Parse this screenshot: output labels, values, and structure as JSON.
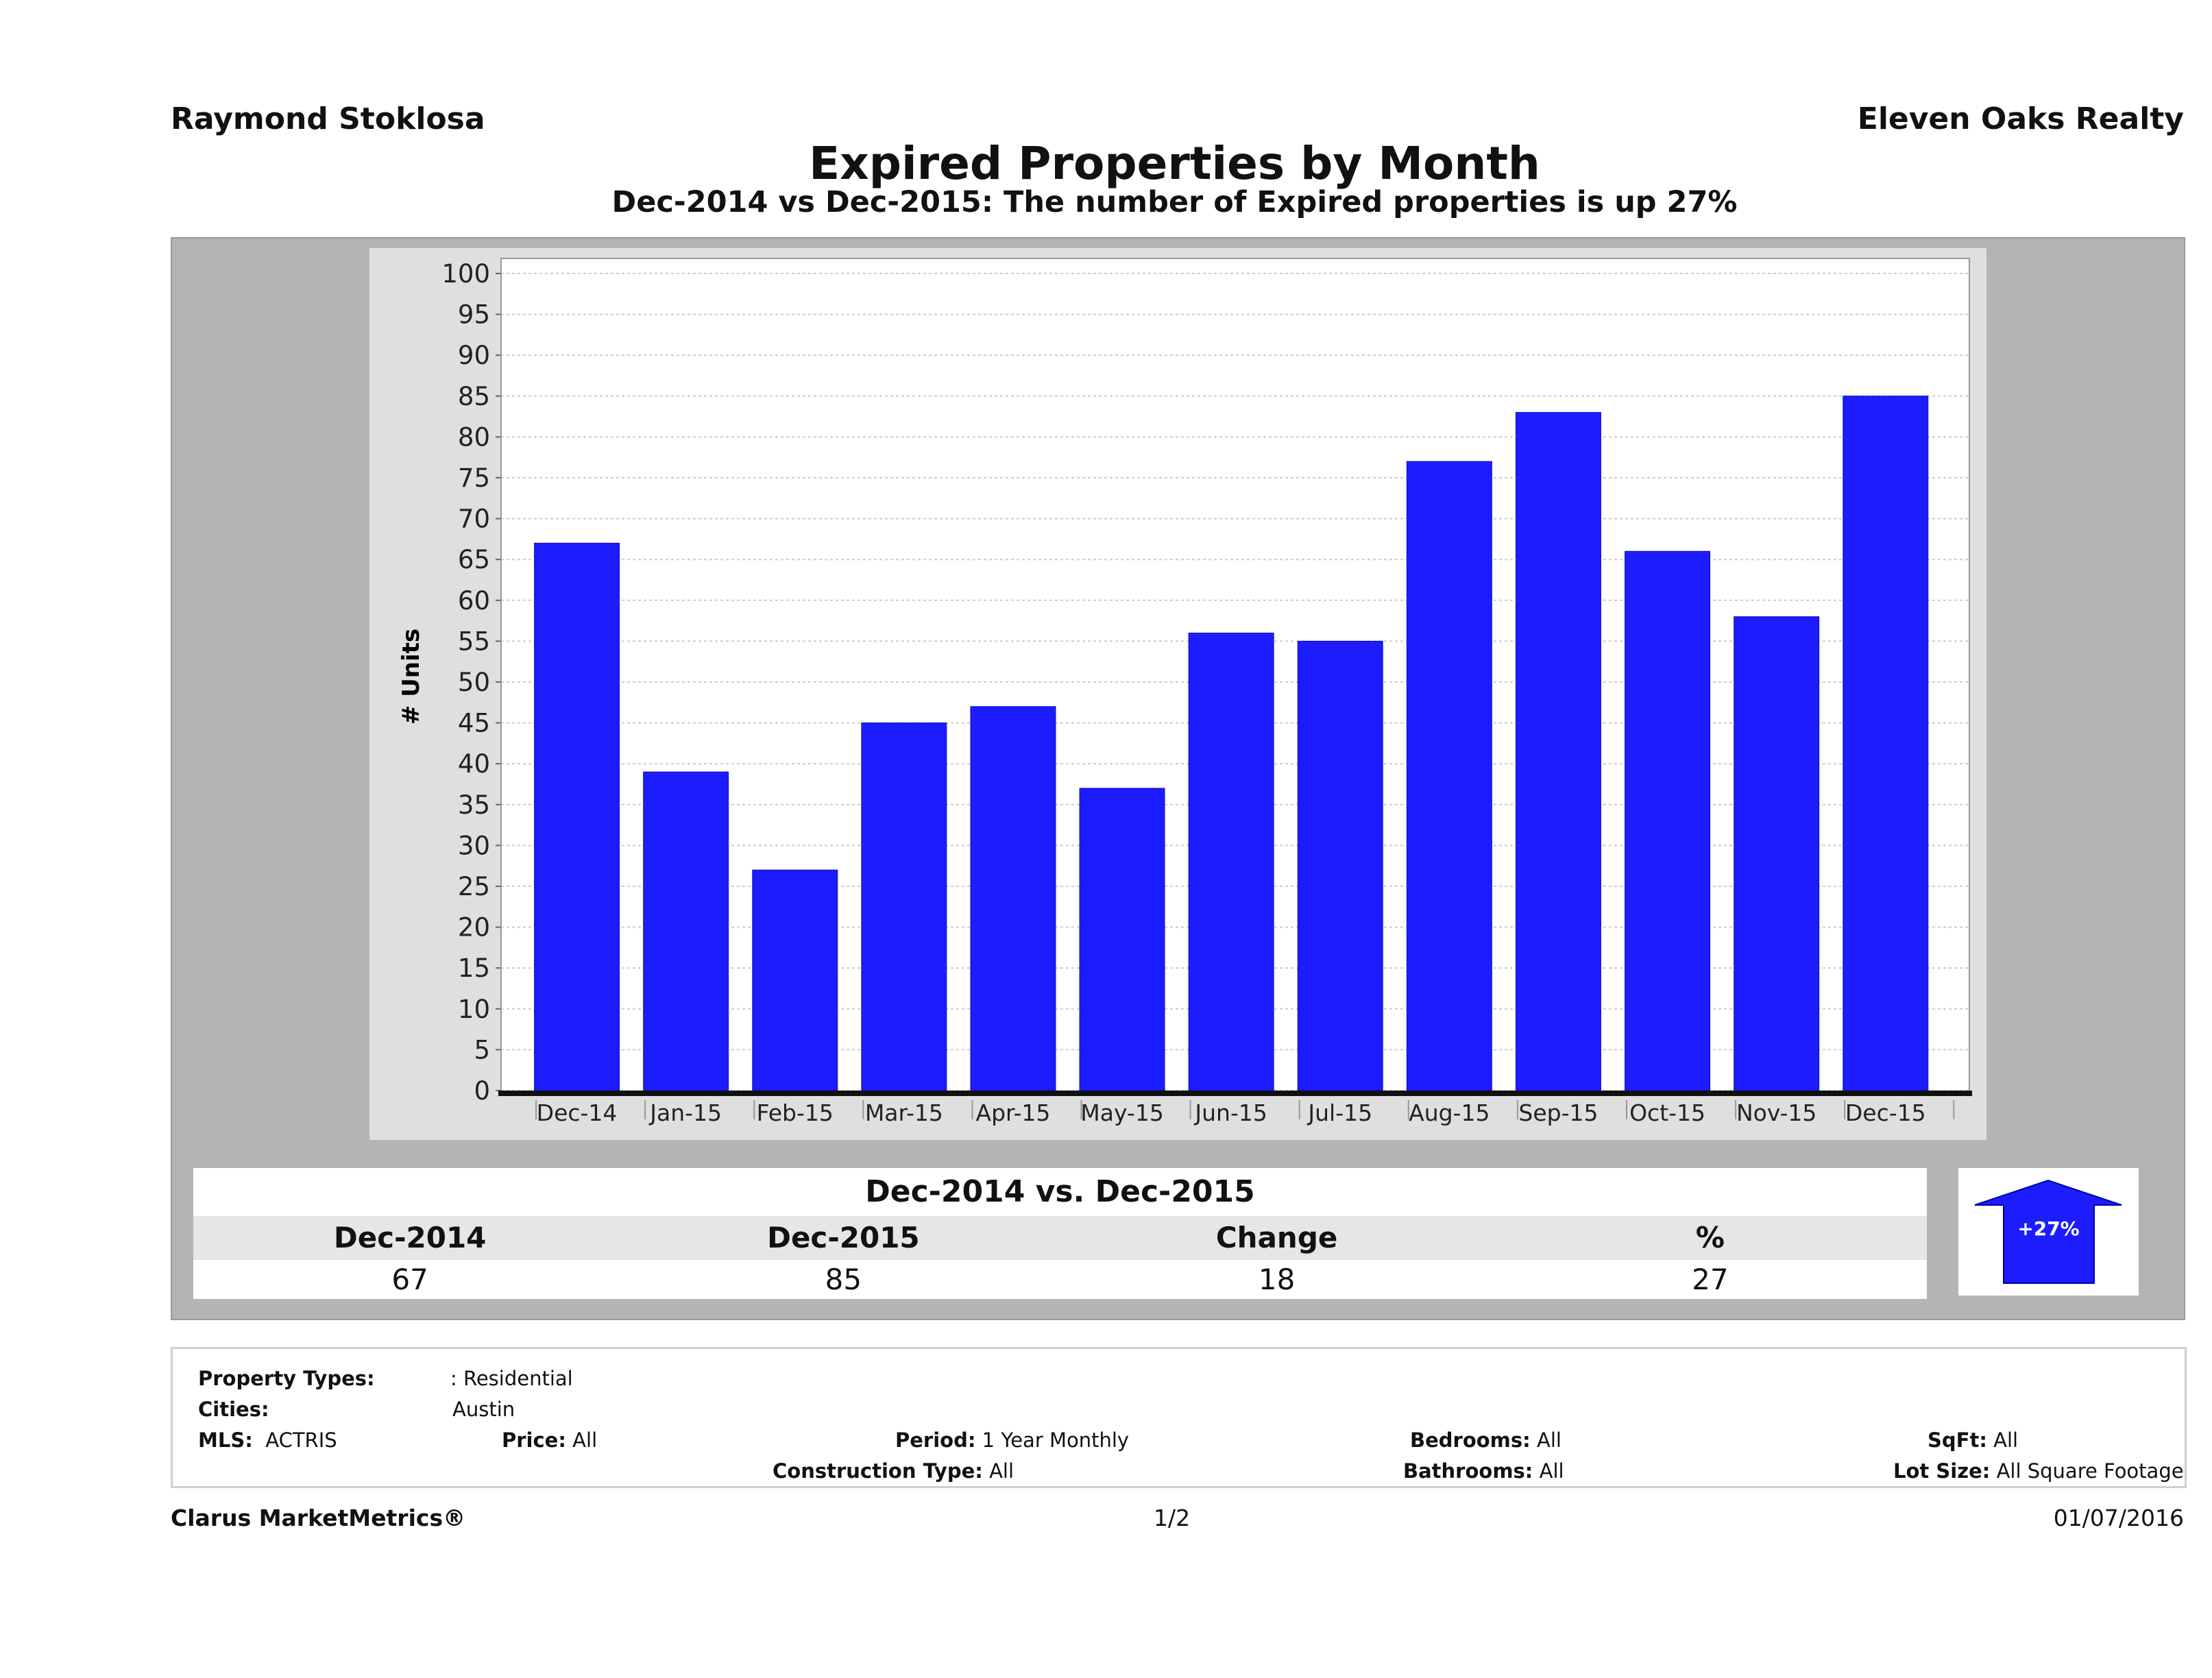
{
  "header": {
    "agent": "Raymond Stoklosa",
    "company": "Eleven Oaks Realty"
  },
  "title": "Expired Properties by Month",
  "subtitle": "Dec-2014 vs Dec-2015: The number of Expired  properties is up 27%",
  "chart_data": {
    "type": "bar",
    "categories": [
      "Dec-14",
      "Jan-15",
      "Feb-15",
      "Mar-15",
      "Apr-15",
      "May-15",
      "Jun-15",
      "Jul-15",
      "Aug-15",
      "Sep-15",
      "Oct-15",
      "Nov-15",
      "Dec-15"
    ],
    "values": [
      67,
      39,
      27,
      45,
      47,
      37,
      56,
      55,
      77,
      83,
      66,
      58,
      85
    ],
    "ylabel": "# Units",
    "xlabel": "",
    "ylim": [
      0,
      100
    ],
    "yticks": [
      0,
      5,
      10,
      15,
      20,
      25,
      30,
      35,
      40,
      45,
      50,
      55,
      60,
      65,
      70,
      75,
      80,
      85,
      90,
      95,
      100
    ],
    "grid": true,
    "bar_color": "#1c1cff"
  },
  "comparison": {
    "title": "Dec-2014 vs. Dec-2015",
    "headers": [
      "Dec-2014",
      "Dec-2015",
      "Change",
      "%"
    ],
    "values": [
      "67",
      "85",
      "18",
      "27"
    ],
    "badge": "+27%",
    "badge_icon": "arrow-up-icon",
    "badge_color": "#1c1cff"
  },
  "filters": {
    "property_types_label": "Property Types:",
    "property_types": ": Residential",
    "cities_label": "Cities:",
    "cities": "Austin",
    "mls_label": "MLS:",
    "mls": "ACTRIS",
    "price_label": "Price:",
    "price": "All",
    "period_label": "Period:",
    "period": "1 Year Monthly",
    "construction_label": "Construction Type:",
    "construction": "All",
    "bedrooms_label": "Bedrooms:",
    "bedrooms": "All",
    "bathrooms_label": "Bathrooms:",
    "bathrooms": "All",
    "sqft_label": "SqFt:",
    "sqft": "All",
    "lotsize_label": "Lot Size:",
    "lotsize": "All Square Footage"
  },
  "footer": {
    "brand": "Clarus MarketMetrics®",
    "page": "1/2",
    "date": "01/07/2016"
  }
}
